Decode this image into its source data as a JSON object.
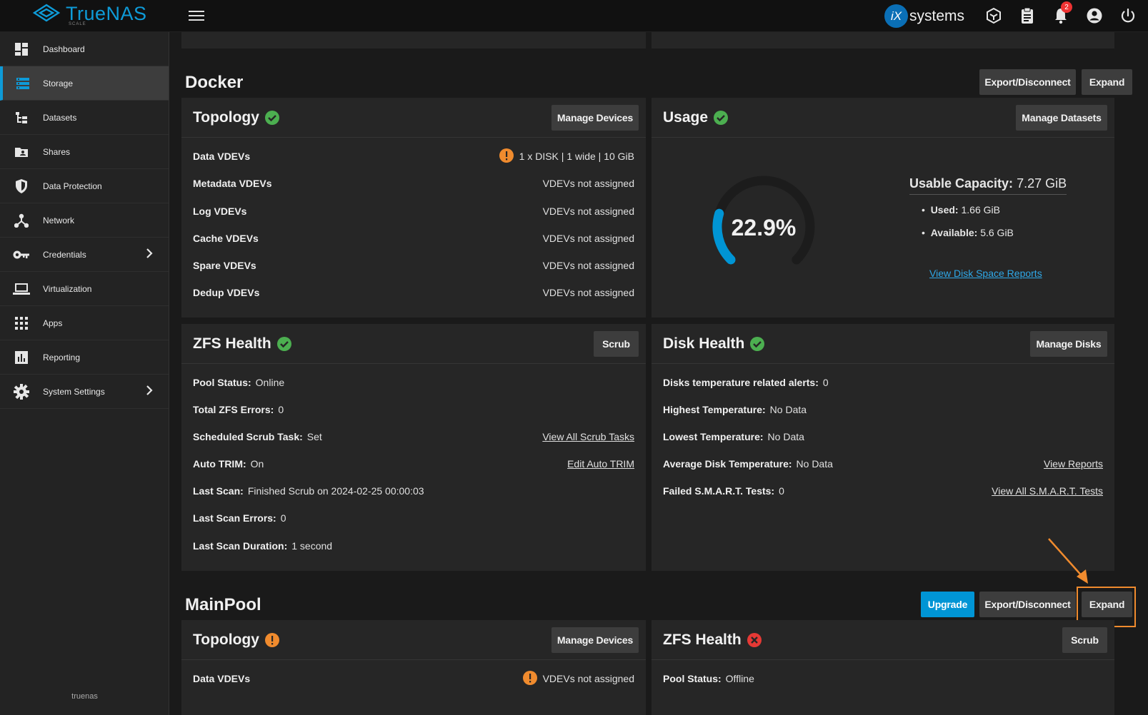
{
  "topbar": {
    "logo_name": "TrueNAS",
    "logo_sub": "SCALE",
    "ix_logo": "iX",
    "ix_text": "systems",
    "notifications_count": "2",
    "icons": [
      "truecommand-icon",
      "jobs-clipboard-icon",
      "notifications-bell-icon",
      "account-icon",
      "power-icon"
    ]
  },
  "sidebar": {
    "items": [
      {
        "label": "Dashboard",
        "icon": "dashboard-icon"
      },
      {
        "label": "Storage",
        "icon": "storage-icon"
      },
      {
        "label": "Datasets",
        "icon": "datasets-icon"
      },
      {
        "label": "Shares",
        "icon": "shares-icon"
      },
      {
        "label": "Data Protection",
        "icon": "shield-icon"
      },
      {
        "label": "Network",
        "icon": "network-icon"
      },
      {
        "label": "Credentials",
        "icon": "key-icon"
      },
      {
        "label": "Virtualization",
        "icon": "laptop-icon"
      },
      {
        "label": "Apps",
        "icon": "apps-grid-icon"
      },
      {
        "label": "Reporting",
        "icon": "reporting-chart-icon"
      },
      {
        "label": "System Settings",
        "icon": "gear-icon"
      }
    ],
    "hostname": "truenas"
  },
  "docker": {
    "title": "Docker",
    "export_label": "Export/Disconnect",
    "expand_label": "Expand",
    "topology": {
      "title": "Topology",
      "button": "Manage Devices",
      "rows": [
        {
          "k": "Data VDEVs",
          "v": "1 x DISK | 1 wide | 10 GiB"
        },
        {
          "k": "Metadata VDEVs",
          "v": "VDEVs not assigned"
        },
        {
          "k": "Log VDEVs",
          "v": "VDEVs not assigned"
        },
        {
          "k": "Cache VDEVs",
          "v": "VDEVs not assigned"
        },
        {
          "k": "Spare VDEVs",
          "v": "VDEVs not assigned"
        },
        {
          "k": "Dedup VDEVs",
          "v": "VDEVs not assigned"
        }
      ]
    },
    "usage": {
      "title": "Usage",
      "button": "Manage Datasets",
      "percent": "22.9%",
      "percent_value": 22.9,
      "capacity_label": "Usable Capacity:",
      "capacity_value": "7.27 GiB",
      "used_label": "Used:",
      "used_value": "1.66 GiB",
      "available_label": "Available:",
      "available_value": "5.6 GiB",
      "report_link": "View Disk Space Reports"
    },
    "zfs": {
      "title": "ZFS Health",
      "button": "Scrub",
      "rows": [
        {
          "k": "Pool Status:",
          "v": "Online",
          "link": ""
        },
        {
          "k": "Total ZFS Errors:",
          "v": "0",
          "link": ""
        },
        {
          "k": "Scheduled Scrub Task:",
          "v": "Set",
          "link": "View All Scrub Tasks"
        },
        {
          "k": "Auto TRIM:",
          "v": "On",
          "link": "Edit Auto TRIM"
        },
        {
          "k": "Last Scan:",
          "v": "Finished Scrub on 2024-02-25 00:00:03",
          "link": ""
        },
        {
          "k": "Last Scan Errors:",
          "v": "0",
          "link": ""
        },
        {
          "k": "Last Scan Duration:",
          "v": "1 second",
          "link": ""
        }
      ]
    },
    "disk": {
      "title": "Disk Health",
      "button": "Manage Disks",
      "rows": [
        {
          "k": "Disks temperature related alerts:",
          "v": "0",
          "link": ""
        },
        {
          "k": "Highest Temperature:",
          "v": "No Data",
          "link": ""
        },
        {
          "k": "Lowest Temperature:",
          "v": "No Data",
          "link": ""
        },
        {
          "k": "Average Disk Temperature:",
          "v": "No Data",
          "link": "View Reports"
        },
        {
          "k": "Failed S.M.A.R.T. Tests:",
          "v": "0",
          "link": "View All S.M.A.R.T. Tests"
        }
      ]
    }
  },
  "mainpool": {
    "title": "MainPool",
    "upgrade_label": "Upgrade",
    "export_label": "Export/Disconnect",
    "expand_label": "Expand",
    "topology": {
      "title": "Topology",
      "button": "Manage Devices",
      "row_k": "Data VDEVs",
      "row_v": "VDEVs not assigned"
    },
    "zfs": {
      "title": "ZFS Health",
      "button": "Scrub",
      "row_k": "Pool Status:",
      "row_v": "Offline"
    }
  },
  "colors": {
    "accent": "#0095d5",
    "ok": "#4caf50",
    "warn": "#f08b2e",
    "error": "#e53935",
    "annotation": "#f08b2e"
  }
}
